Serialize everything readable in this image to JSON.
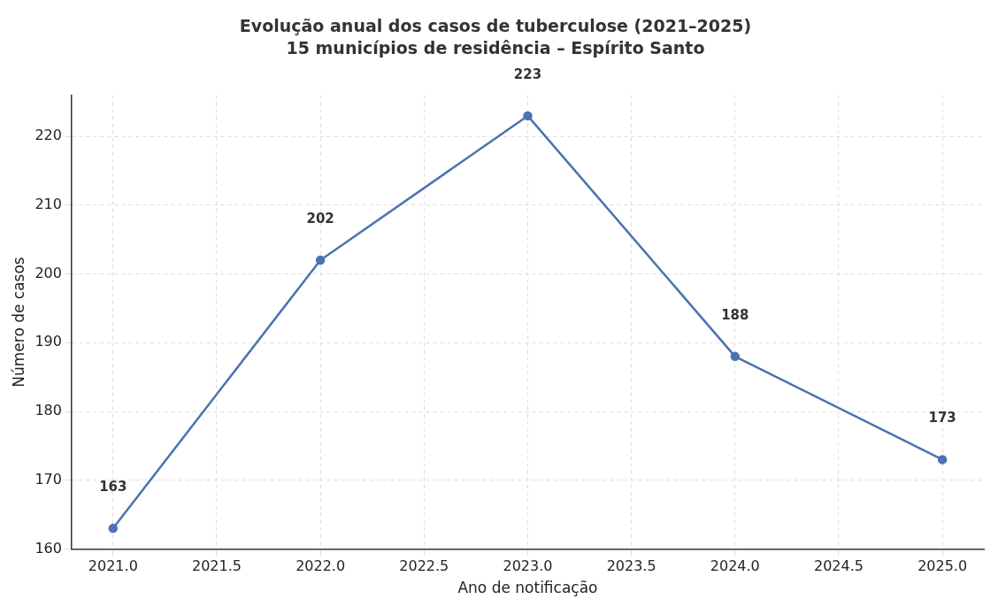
{
  "chart_data": {
    "type": "line",
    "title": "Evolução anual dos casos de tuberculose (2021–2025)",
    "subtitle": "15 municípios de residência – Espírito Santo",
    "xlabel": "Ano de notificação",
    "ylabel": "Número de casos",
    "x": [
      2021,
      2022,
      2023,
      2024,
      2025
    ],
    "series": [
      {
        "color": "#4c72b0",
        "values": [
          163,
          202,
          223,
          188,
          173
        ]
      }
    ],
    "xlim": [
      2020.8,
      2025.2
    ],
    "xticks": [
      {
        "value": 2021,
        "label": "2021.0"
      },
      {
        "value": 2021.5,
        "label": "2021.5"
      },
      {
        "value": 2022,
        "label": "2022.0"
      },
      {
        "value": 2022.5,
        "label": "2022.5"
      },
      {
        "value": 2023,
        "label": "2023.0"
      },
      {
        "value": 2023.5,
        "label": "2023.5"
      },
      {
        "value": 2024,
        "label": "2024.0"
      },
      {
        "value": 2024.5,
        "label": "2024.5"
      },
      {
        "value": 2025,
        "label": "2025.0"
      }
    ],
    "ylim": [
      160,
      226
    ],
    "yticks": [
      160,
      170,
      180,
      190,
      200,
      210,
      220
    ],
    "grid": true,
    "legend": false,
    "marker": "circle",
    "line_style": "solid",
    "data_labels": true
  }
}
